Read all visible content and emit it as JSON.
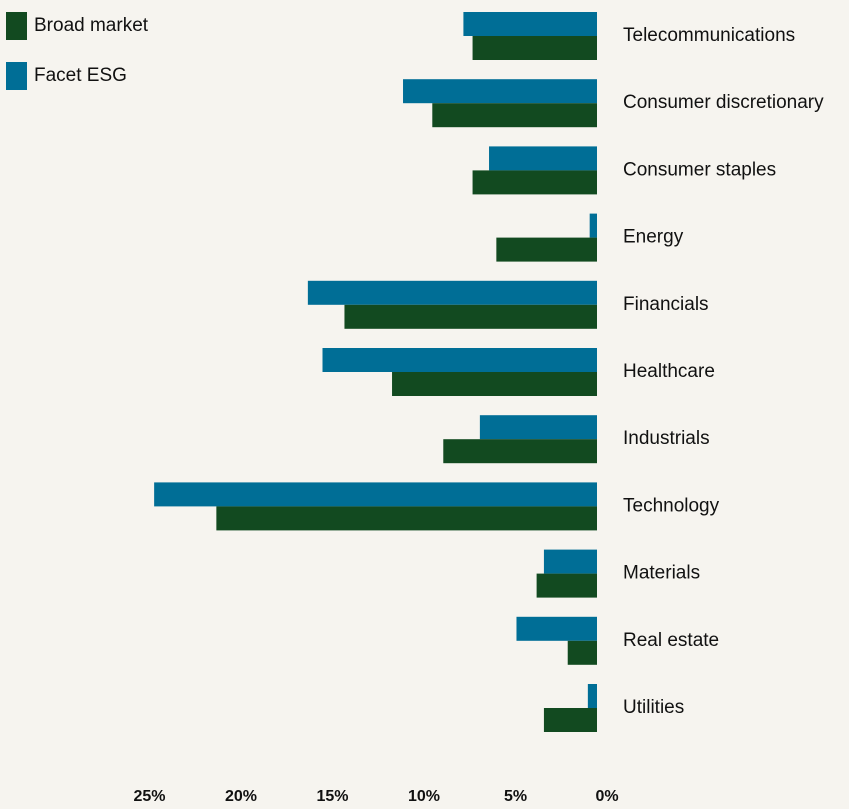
{
  "chart_data": {
    "type": "bar",
    "orientation": "horizontal",
    "direction": "bars extend left from 0%",
    "categories": [
      "Telecommunications",
      "Consumer discretionary",
      "Consumer staples",
      "Energy",
      "Financials",
      "Healthcare",
      "Industrials",
      "Technology",
      "Materials",
      "Real estate",
      "Utilities"
    ],
    "series": [
      {
        "name": "Facet ESG",
        "color": "#006e96",
        "values": [
          7.3,
          10.6,
          5.9,
          0.4,
          15.8,
          15.0,
          6.4,
          24.2,
          2.9,
          4.4,
          0.5
        ]
      },
      {
        "name": "Broad market",
        "color": "#124a20",
        "values": [
          6.8,
          9.0,
          6.8,
          5.5,
          13.8,
          11.2,
          8.4,
          20.8,
          3.3,
          1.6,
          2.9
        ]
      }
    ],
    "xticks": [
      "25%",
      "20%",
      "15%",
      "10%",
      "5%",
      "0%"
    ],
    "xtick_values": [
      25,
      20,
      15,
      10,
      5,
      0
    ],
    "xlim": [
      0,
      25
    ],
    "legend_position": "top-left",
    "grid": false,
    "title": "",
    "xlabel": "",
    "ylabel": ""
  }
}
